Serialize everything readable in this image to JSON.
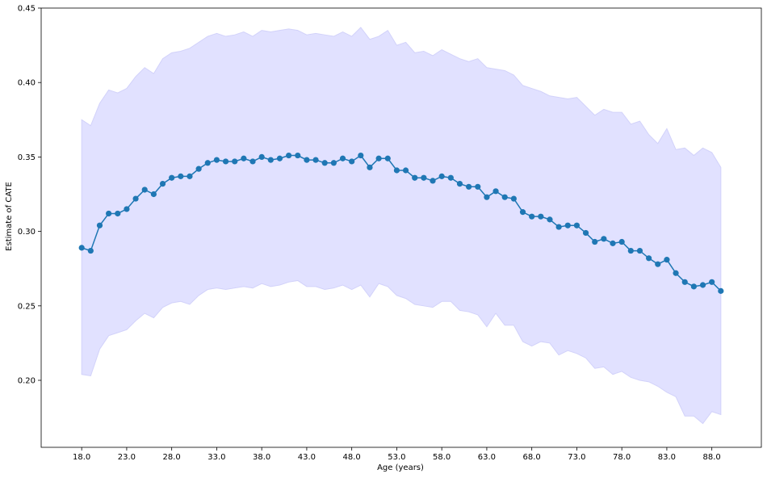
{
  "chart_data": {
    "type": "line",
    "xlabel": "Age (years)",
    "ylabel": "Estimate of CATE",
    "xlim": [
      13.5,
      93.5
    ],
    "ylim": [
      0.155,
      0.45
    ],
    "xticks": [
      18,
      23,
      28,
      33,
      38,
      43,
      48,
      53,
      58,
      63,
      68,
      73,
      78,
      83,
      88
    ],
    "xtick_labels": [
      "18.0",
      "23.0",
      "28.0",
      "33.0",
      "38.0",
      "43.0",
      "48.0",
      "53.0",
      "58.0",
      "63.0",
      "68.0",
      "73.0",
      "78.0",
      "83.0",
      "88.0"
    ],
    "yticks": [
      0.2,
      0.25,
      0.3,
      0.35,
      0.4,
      0.45
    ],
    "ytick_labels": [
      "0.20",
      "0.25",
      "0.30",
      "0.35",
      "0.40",
      "0.45"
    ],
    "grid": false,
    "legend": "none",
    "x": [
      18,
      19,
      20,
      21,
      22,
      23,
      24,
      25,
      26,
      27,
      28,
      29,
      30,
      31,
      32,
      33,
      34,
      35,
      36,
      37,
      38,
      39,
      40,
      41,
      42,
      43,
      44,
      45,
      46,
      47,
      48,
      49,
      50,
      51,
      52,
      53,
      54,
      55,
      56,
      57,
      58,
      59,
      60,
      61,
      62,
      63,
      64,
      65,
      66,
      67,
      68,
      69,
      70,
      71,
      72,
      73,
      74,
      75,
      76,
      77,
      78,
      79,
      80,
      81,
      82,
      83,
      84,
      85,
      86,
      87,
      88,
      89
    ],
    "series": [
      {
        "values": [
          0.289,
          0.287,
          0.304,
          0.312,
          0.312,
          0.315,
          0.322,
          0.328,
          0.325,
          0.332,
          0.336,
          0.337,
          0.337,
          0.342,
          0.346,
          0.348,
          0.347,
          0.347,
          0.349,
          0.347,
          0.35,
          0.348,
          0.349,
          0.351,
          0.351,
          0.348,
          0.348,
          0.346,
          0.346,
          0.349,
          0.347,
          0.351,
          0.343,
          0.349,
          0.349,
          0.341,
          0.341,
          0.336,
          0.336,
          0.334,
          0.337,
          0.336,
          0.332,
          0.33,
          0.33,
          0.323,
          0.327,
          0.323,
          0.322,
          0.313,
          0.31,
          0.31,
          0.308,
          0.303,
          0.304,
          0.304,
          0.299,
          0.293,
          0.295,
          0.292,
          0.293,
          0.287,
          0.287,
          0.282,
          0.278,
          0.281,
          0.272,
          0.266,
          0.263,
          0.264,
          0.266,
          0.26
        ],
        "upper": [
          0.375,
          0.371,
          0.386,
          0.395,
          0.393,
          0.396,
          0.404,
          0.41,
          0.406,
          0.416,
          0.42,
          0.421,
          0.423,
          0.427,
          0.431,
          0.433,
          0.431,
          0.432,
          0.434,
          0.431,
          0.435,
          0.434,
          0.435,
          0.436,
          0.435,
          0.432,
          0.433,
          0.432,
          0.431,
          0.434,
          0.431,
          0.437,
          0.429,
          0.431,
          0.435,
          0.425,
          0.427,
          0.42,
          0.421,
          0.418,
          0.422,
          0.419,
          0.416,
          0.414,
          0.416,
          0.41,
          0.409,
          0.408,
          0.405,
          0.398,
          0.396,
          0.394,
          0.391,
          0.39,
          0.389,
          0.39,
          0.384,
          0.378,
          0.382,
          0.38,
          0.38,
          0.372,
          0.374,
          0.365,
          0.359,
          0.369,
          0.355,
          0.356,
          0.351,
          0.356,
          0.353,
          0.343
        ],
        "lower": [
          0.204,
          0.203,
          0.221,
          0.23,
          0.232,
          0.234,
          0.24,
          0.245,
          0.242,
          0.249,
          0.252,
          0.253,
          0.251,
          0.257,
          0.261,
          0.262,
          0.261,
          0.262,
          0.263,
          0.262,
          0.265,
          0.263,
          0.264,
          0.266,
          0.267,
          0.263,
          0.263,
          0.261,
          0.262,
          0.264,
          0.261,
          0.264,
          0.256,
          0.265,
          0.263,
          0.257,
          0.255,
          0.251,
          0.25,
          0.249,
          0.253,
          0.253,
          0.247,
          0.246,
          0.244,
          0.236,
          0.245,
          0.237,
          0.237,
          0.226,
          0.223,
          0.226,
          0.225,
          0.217,
          0.22,
          0.218,
          0.215,
          0.208,
          0.209,
          0.204,
          0.206,
          0.202,
          0.2,
          0.199,
          0.196,
          0.192,
          0.189,
          0.176,
          0.176,
          0.171,
          0.179,
          0.177
        ]
      }
    ],
    "colors": {
      "line": "#1f77b4",
      "band": "#e1e1ff",
      "band_edge": "#d2d2fa",
      "axis": "#000000"
    }
  }
}
